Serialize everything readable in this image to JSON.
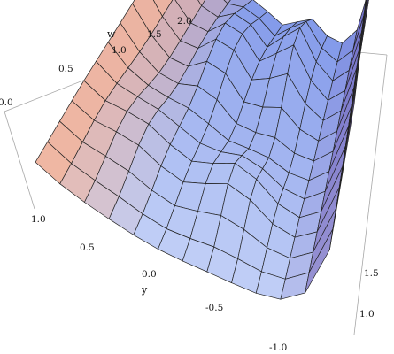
{
  "chart_data": {
    "type": "surface3d",
    "title": "",
    "axes": {
      "w": {
        "label": "w",
        "range": [
          0.0,
          2.0
        ],
        "ticks": [
          "0.0",
          "0.5",
          "1.0",
          "1.5",
          "2.0"
        ]
      },
      "y": {
        "label": "y",
        "range": [
          -1.0,
          1.0
        ],
        "ticks": [
          "1.0",
          "0.5",
          "0.0",
          "-0.5",
          "-1.0"
        ]
      },
      "x": {
        "label": "",
        "range": [
          0.8,
          2.0
        ],
        "ticks": [
          "1.0",
          "1.5"
        ]
      }
    },
    "surface": {
      "grid_u": 13,
      "grid_v": 13,
      "description_free": true,
      "colors": {
        "warm": "#f4b49a",
        "cool": "#6f88e6",
        "dark": "#5b3aa0",
        "light": "#eef6ff"
      }
    },
    "box": {
      "edge": "#9a9a9a"
    }
  }
}
